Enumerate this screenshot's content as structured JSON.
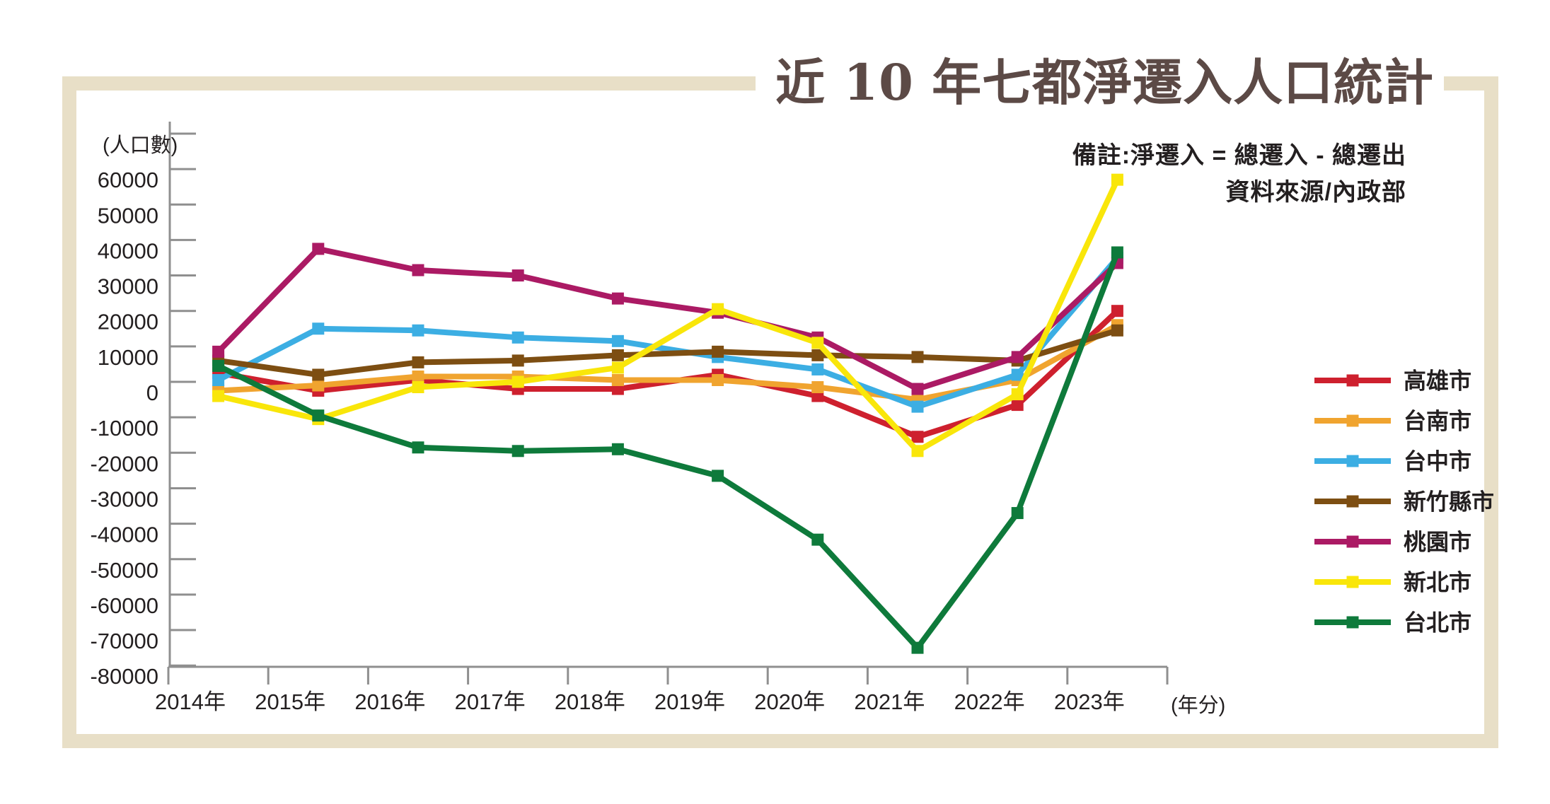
{
  "title": "近 10 年七都淨遷入人口統計",
  "notes": {
    "line1": "備註:淨遷入 = 總遷入 - 總遷出",
    "line2": "資料來源/內政部"
  },
  "axes": {
    "y_unit_label": "(人口數)",
    "x_unit_label": "(年分)",
    "y_tick_labels": [
      "60000",
      "50000",
      "40000",
      "30000",
      "20000",
      "10000",
      "0",
      "-10000",
      "-20000",
      "-30000",
      "-40000",
      "-50000",
      "-60000",
      "-70000",
      "-80000"
    ],
    "extra_top_tick_value": 70000,
    "grid": "off",
    "legend_position": "right"
  },
  "style": {
    "frame_beige": "#e8dfc7",
    "axis_gray": "#8f8f8f",
    "text_dark": "#231f20",
    "title_brown": "#5c4a46",
    "background": "#ffffff"
  },
  "chart_data": {
    "type": "line",
    "title": "近 10 年七都淨遷入人口統計",
    "xlabel": "(年分)",
    "ylabel": "(人口數)",
    "ylim": [
      -80000,
      70000
    ],
    "y_tick_step": 10000,
    "categories": [
      "2014年",
      "2015年",
      "2016年",
      "2017年",
      "2018年",
      "2019年",
      "2020年",
      "2021年",
      "2022年",
      "2023年"
    ],
    "series": [
      {
        "name": "高雄市",
        "slug": "kaohsiung",
        "color": "#ce202e",
        "values": [
          2500,
          -2500,
          500,
          -2000,
          -2000,
          2000,
          -4000,
          -15500,
          -6500,
          20000
        ]
      },
      {
        "name": "台南市",
        "slug": "tainan",
        "color": "#f0a42f",
        "values": [
          -2500,
          -1000,
          1500,
          1500,
          500,
          500,
          -1500,
          -5000,
          500,
          16000
        ]
      },
      {
        "name": "台中市",
        "slug": "taichung",
        "color": "#3caee3",
        "values": [
          500,
          15000,
          14500,
          12500,
          11500,
          7000,
          3500,
          -7000,
          2000,
          35000
        ]
      },
      {
        "name": "新竹縣市",
        "slug": "hsinchu",
        "color": "#7d4e12",
        "values": [
          6000,
          2000,
          5500,
          6000,
          7500,
          8500,
          7500,
          7000,
          6000,
          14500
        ]
      },
      {
        "name": "桃園市",
        "slug": "taoyuan",
        "color": "#ab1a64",
        "values": [
          8500,
          37500,
          31500,
          30000,
          23500,
          19500,
          12500,
          -2000,
          7000,
          33500
        ]
      },
      {
        "name": "新北市",
        "slug": "new-taipei",
        "color": "#f9e60a",
        "values": [
          -4000,
          -10500,
          -1500,
          0,
          4000,
          20500,
          11000,
          -19500,
          -3500,
          57000
        ]
      },
      {
        "name": "台北市",
        "slug": "taipei",
        "color": "#0e7a3b",
        "values": [
          4500,
          -9500,
          -18500,
          -19500,
          -19000,
          -26500,
          -44500,
          -75000,
          -37000,
          36500
        ]
      }
    ]
  }
}
